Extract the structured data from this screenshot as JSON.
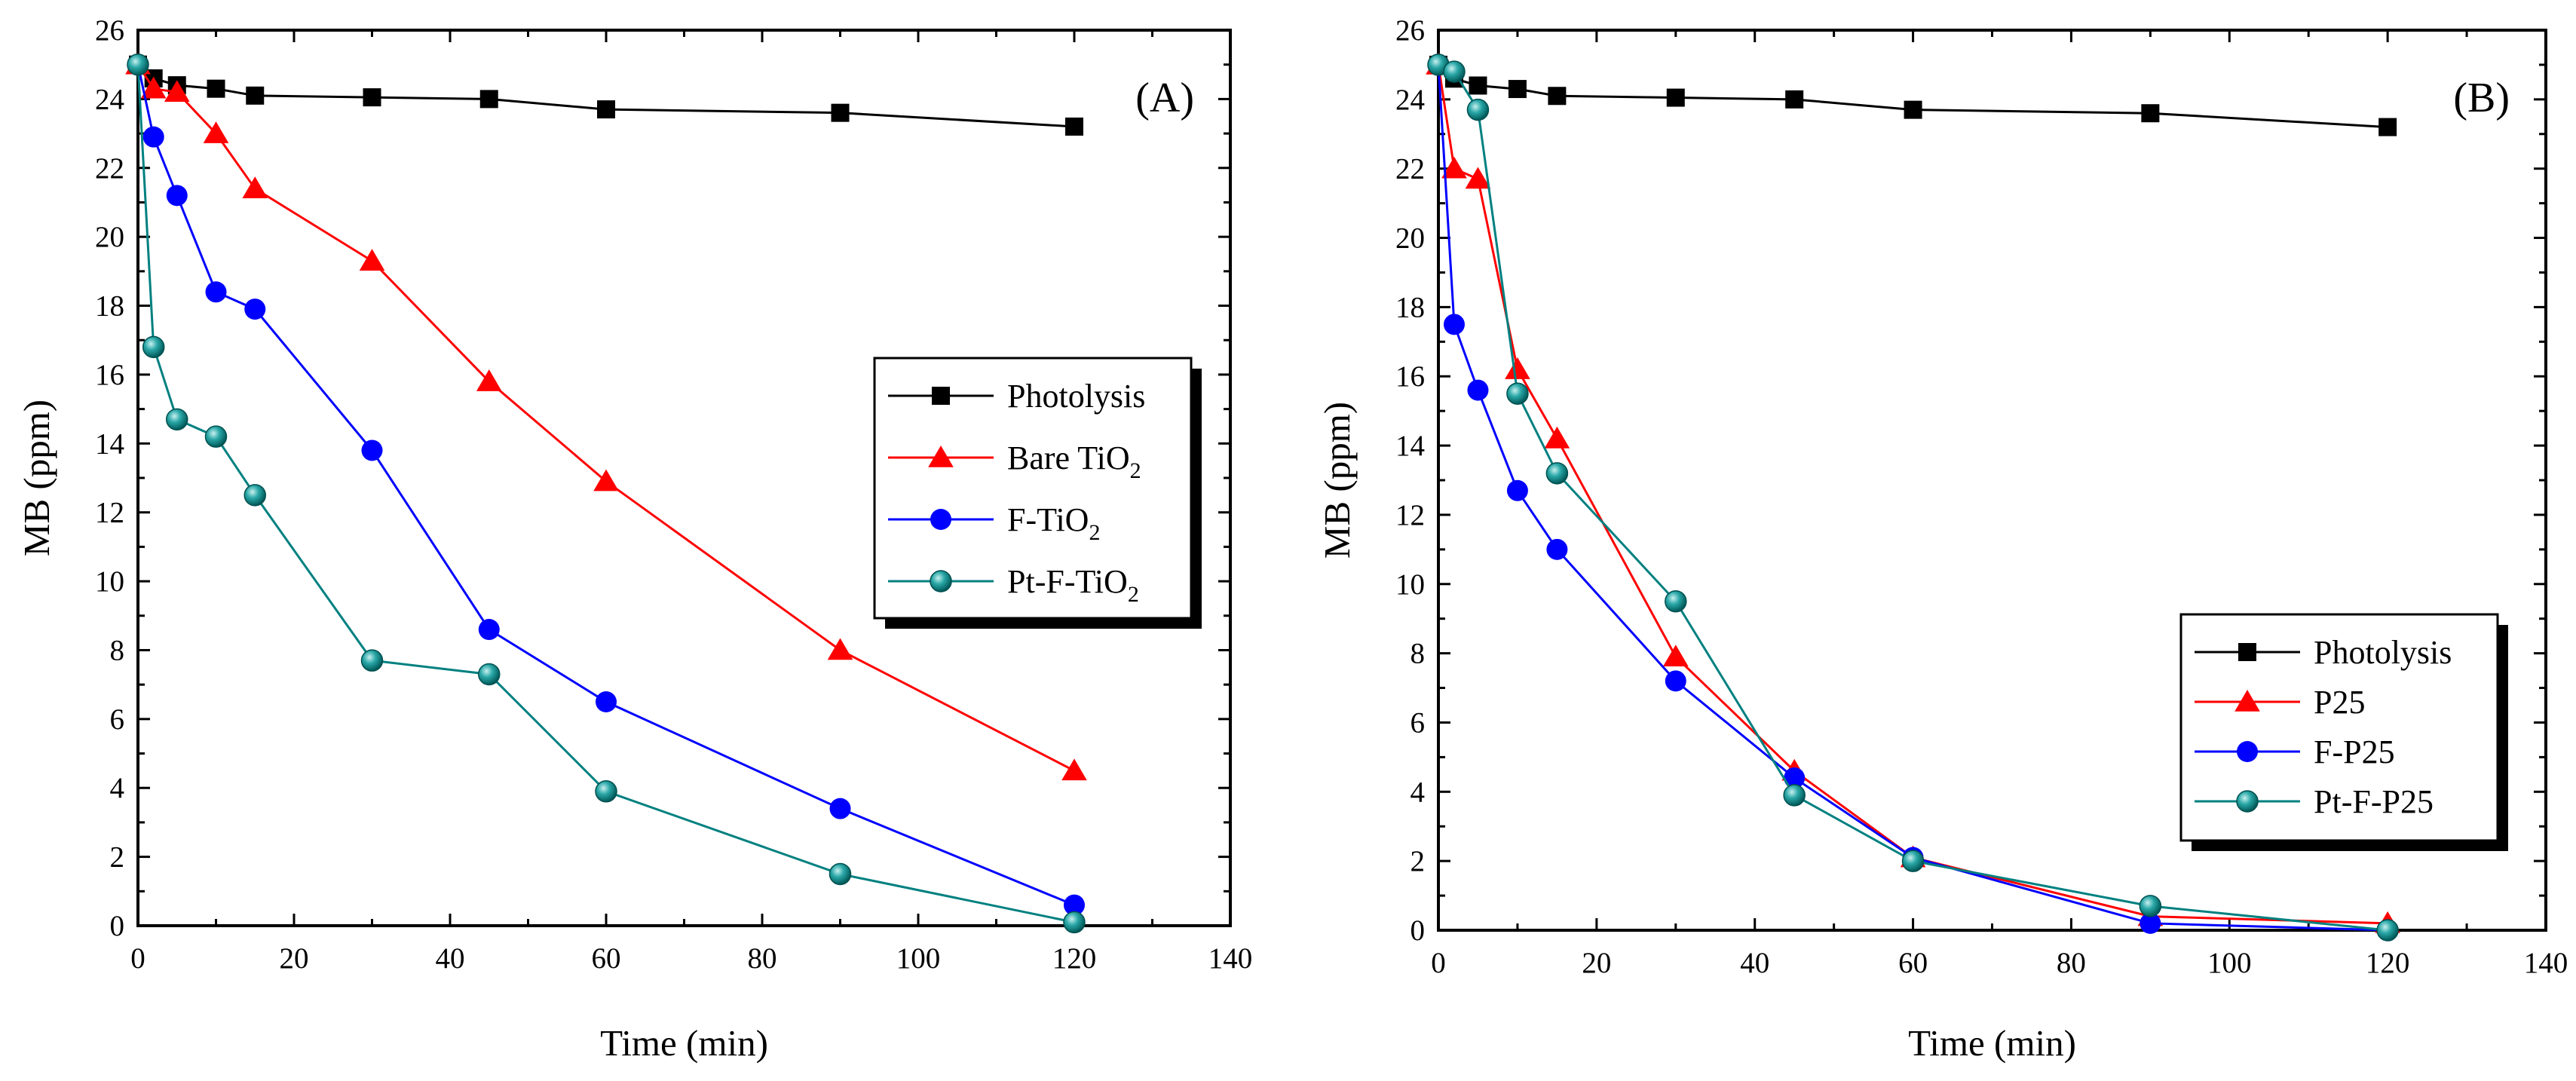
{
  "chart_data": [
    {
      "type": "line",
      "panel_label": "(A)",
      "xlabel": "Time (min)",
      "ylabel": "MB (ppm)",
      "xlim": [
        0,
        140
      ],
      "ylim": [
        0,
        26
      ],
      "xticks": [
        0,
        20,
        40,
        60,
        80,
        100,
        120,
        140
      ],
      "yticks": [
        0,
        2,
        4,
        6,
        8,
        10,
        12,
        14,
        16,
        18,
        20,
        22,
        24,
        26
      ],
      "legend_position": "center-right",
      "series": [
        {
          "name": "Photolysis",
          "name_main": "Photolysis",
          "name_sub": "",
          "name_tail": "",
          "color": "#000000",
          "marker": "square",
          "x": [
            0,
            2,
            5,
            10,
            15,
            30,
            45,
            60,
            90,
            120
          ],
          "y": [
            25.0,
            24.6,
            24.4,
            24.3,
            24.1,
            24.05,
            24.0,
            23.7,
            23.6,
            23.2
          ]
        },
        {
          "name": "Bare TiO2",
          "name_main": "Bare TiO",
          "name_sub": "2",
          "name_tail": "",
          "color": "#ff0000",
          "marker": "triangle",
          "x": [
            0,
            2,
            5,
            10,
            15,
            30,
            45,
            60,
            90,
            120
          ],
          "y": [
            25.0,
            24.3,
            24.2,
            23.0,
            21.4,
            19.3,
            15.8,
            12.9,
            8.0,
            4.5
          ]
        },
        {
          "name": "F-TiO2",
          "name_main": "F-TiO",
          "name_sub": "2",
          "name_tail": "",
          "color": "#0000ff",
          "marker": "circle",
          "x": [
            0,
            2,
            5,
            10,
            15,
            30,
            45,
            60,
            90,
            120
          ],
          "y": [
            25.0,
            22.9,
            21.2,
            18.4,
            17.9,
            13.8,
            8.6,
            6.5,
            3.4,
            0.6
          ]
        },
        {
          "name": "Pt-F-TiO2",
          "name_main": "Pt-F-TiO",
          "name_sub": "2",
          "name_tail": "",
          "color": "#008080",
          "marker": "sphere",
          "x": [
            0,
            2,
            5,
            10,
            15,
            30,
            45,
            60,
            90,
            120
          ],
          "y": [
            25.0,
            16.8,
            14.7,
            14.2,
            12.5,
            7.7,
            7.3,
            3.9,
            1.5,
            0.1
          ]
        }
      ]
    },
    {
      "type": "line",
      "panel_label": "(B)",
      "xlabel": "Time (min)",
      "ylabel": "MB (ppm)",
      "xlim": [
        0,
        140
      ],
      "ylim": [
        0,
        26
      ],
      "xticks": [
        0,
        20,
        40,
        60,
        80,
        100,
        120,
        140
      ],
      "yticks": [
        0,
        2,
        4,
        6,
        8,
        10,
        12,
        14,
        16,
        18,
        20,
        22,
        24,
        26
      ],
      "legend_position": "lower-right",
      "series": [
        {
          "name": "Photolysis",
          "name_main": "Photolysis",
          "name_sub": "",
          "name_tail": "",
          "color": "#000000",
          "marker": "square",
          "x": [
            0,
            2,
            5,
            10,
            15,
            30,
            45,
            60,
            90,
            120
          ],
          "y": [
            25.0,
            24.6,
            24.4,
            24.3,
            24.1,
            24.05,
            24.0,
            23.7,
            23.6,
            23.2
          ]
        },
        {
          "name": "P25",
          "name_main": "P25",
          "name_sub": "",
          "name_tail": "",
          "color": "#ff0000",
          "marker": "triangle",
          "x": [
            0,
            2,
            5,
            10,
            15,
            30,
            45,
            60,
            90,
            120
          ],
          "y": [
            25.0,
            22.0,
            21.7,
            16.2,
            14.2,
            7.9,
            4.6,
            2.1,
            0.4,
            0.2
          ]
        },
        {
          "name": "F-P25",
          "name_main": "F-P25",
          "name_sub": "",
          "name_tail": "",
          "color": "#0000ff",
          "marker": "circle",
          "x": [
            0,
            2,
            5,
            10,
            15,
            30,
            45,
            60,
            90,
            120
          ],
          "y": [
            25.0,
            17.5,
            15.6,
            12.7,
            11.0,
            7.2,
            4.4,
            2.1,
            0.2,
            0.0
          ]
        },
        {
          "name": "Pt-F-P25",
          "name_main": "Pt-F-P25",
          "name_sub": "",
          "name_tail": "",
          "color": "#008080",
          "marker": "sphere",
          "x": [
            0,
            2,
            5,
            10,
            15,
            30,
            45,
            60,
            90,
            120
          ],
          "y": [
            25.0,
            24.8,
            23.7,
            15.5,
            13.2,
            9.5,
            3.9,
            2.0,
            0.7,
            0.0
          ]
        }
      ]
    }
  ]
}
